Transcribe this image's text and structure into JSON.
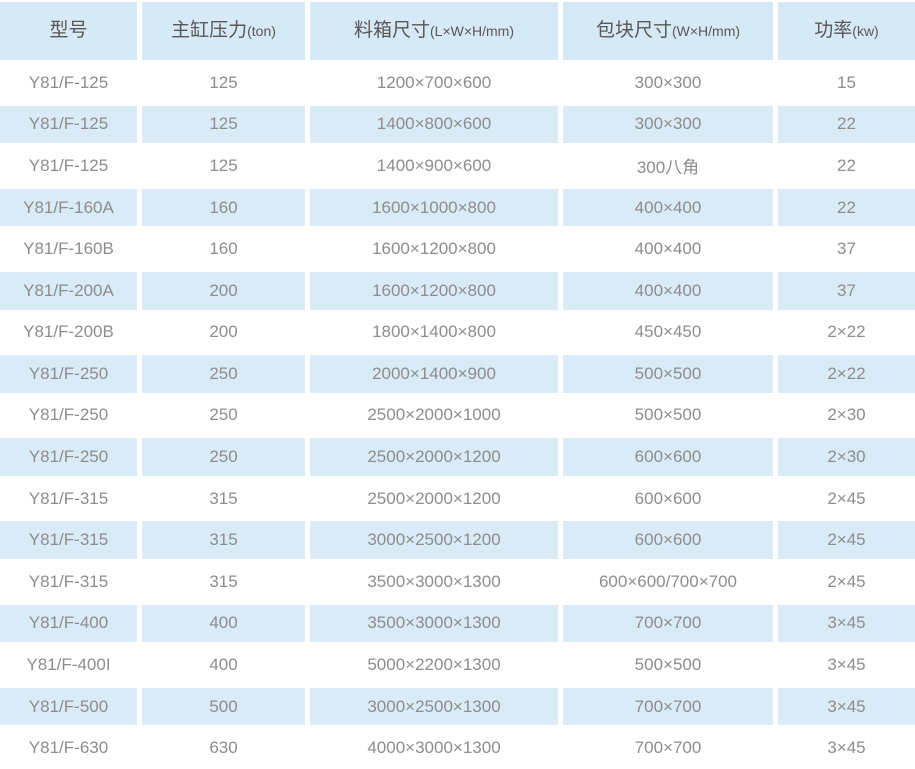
{
  "chart_data": {
    "type": "table",
    "columns": [
      {
        "label": "型号",
        "unit": ""
      },
      {
        "label": "主缸压力",
        "unit": "(ton)"
      },
      {
        "label": "料箱尺寸",
        "unit": "(L×W×H/mm)"
      },
      {
        "label": "包块尺寸",
        "unit": "(W×H/mm)"
      },
      {
        "label": "功率",
        "unit": "(kw)"
      }
    ],
    "rows": [
      [
        "Y81/F-125",
        "125",
        "1200×700×600",
        "300×300",
        "15"
      ],
      [
        "Y81/F-125",
        "125",
        "1400×800×600",
        "300×300",
        "22"
      ],
      [
        "Y81/F-125",
        "125",
        "1400×900×600",
        "300八角",
        "22"
      ],
      [
        "Y81/F-160A",
        "160",
        "1600×1000×800",
        "400×400",
        "22"
      ],
      [
        "Y81/F-160B",
        "160",
        "1600×1200×800",
        "400×400",
        "37"
      ],
      [
        "Y81/F-200A",
        "200",
        "1600×1200×800",
        "400×400",
        "37"
      ],
      [
        "Y81/F-200B",
        "200",
        "1800×1400×800",
        "450×450",
        "2×22"
      ],
      [
        "Y81/F-250",
        "250",
        "2000×1400×900",
        "500×500",
        "2×22"
      ],
      [
        "Y81/F-250",
        "250",
        "2500×2000×1000",
        "500×500",
        "2×30"
      ],
      [
        "Y81/F-250",
        "250",
        "2500×2000×1200",
        "600×600",
        "2×30"
      ],
      [
        "Y81/F-315",
        "315",
        "2500×2000×1200",
        "600×600",
        "2×45"
      ],
      [
        "Y81/F-315",
        "315",
        "3000×2500×1200",
        "600×600",
        "2×45"
      ],
      [
        "Y81/F-315",
        "315",
        "3500×3000×1300",
        "600×600/700×700",
        "2×45"
      ],
      [
        "Y81/F-400",
        "400",
        "3500×3000×1300",
        "700×700",
        "3×45"
      ],
      [
        "Y81/F-400I",
        "400",
        "5000×2200×1300",
        "500×500",
        "3×45"
      ],
      [
        "Y81/F-500",
        "500",
        "3000×2500×1300",
        "700×700",
        "3×45"
      ],
      [
        "Y81/F-630",
        "630",
        "4000×3000×1300",
        "700×700",
        "3×45"
      ]
    ]
  },
  "colors": {
    "header_bg": "#d6e9f6",
    "row_alt_bg": "#d9ebf7",
    "header_text": "#595757",
    "body_text": "#8d8d8d"
  }
}
